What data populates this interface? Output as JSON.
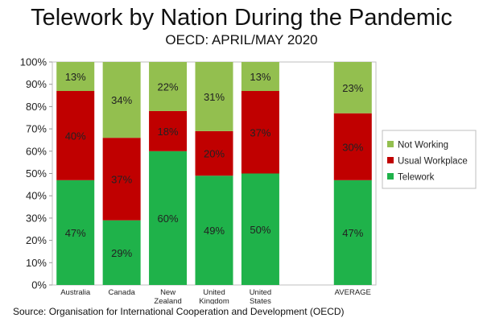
{
  "chart_data": {
    "type": "bar",
    "stacked": true,
    "title": "Telework by Nation During the Pandemic",
    "subtitle": "OECD: APRIL/MAY 2020",
    "categories": [
      [
        "Australia"
      ],
      [
        "Canada"
      ],
      [
        "New",
        "Zealand"
      ],
      [
        "United",
        "Kingdom"
      ],
      [
        "United",
        "States"
      ],
      [
        ""
      ],
      [
        "AVERAGE"
      ]
    ],
    "series": [
      {
        "name": "Telework",
        "color": "#1fb24a",
        "values": [
          47,
          29,
          60,
          49,
          50,
          null,
          47
        ]
      },
      {
        "name": "Usual Workplace",
        "color": "#c00000",
        "values": [
          40,
          37,
          18,
          20,
          37,
          null,
          30
        ]
      },
      {
        "name": "Not Working",
        "color": "#93bf4f",
        "values": [
          13,
          34,
          22,
          31,
          13,
          null,
          23
        ]
      }
    ],
    "value_suffix": "%",
    "yticks": [
      "0%",
      "10%",
      "20%",
      "30%",
      "40%",
      "50%",
      "60%",
      "70%",
      "80%",
      "90%",
      "100%"
    ],
    "ylim": [
      0,
      100
    ],
    "legend_position": "right",
    "legend_order": [
      "Not Working",
      "Usual Workplace",
      "Telework"
    ]
  },
  "source": "Source: Organisation for International Cooperation and Development (OECD)"
}
